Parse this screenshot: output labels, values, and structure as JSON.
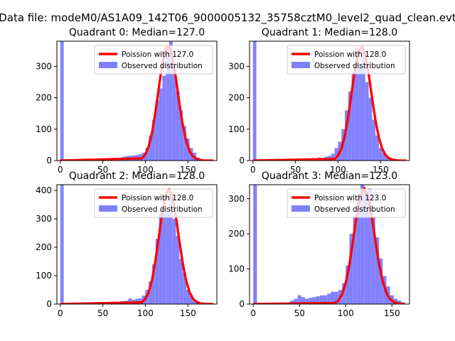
{
  "figure": {
    "suptitle": "Data file: modeM0/AS1A09_142T06_9000005132_35758cztM0_level2_quad_clean.evt"
  },
  "colors": {
    "fit_line": "#ff0000",
    "histogram": "#8080ff",
    "axis": "#000000",
    "background": "#ffffff"
  },
  "legend": {
    "observed_label": "Observed distribution"
  },
  "chart_data": [
    {
      "type": "bar",
      "title": "Quadrant 0: Median=127.0",
      "fit_label": "Poission with 127.0",
      "median": 127.0,
      "xlim": [
        -4,
        184
      ],
      "ylim": [
        0,
        380
      ],
      "xticks": [
        0,
        50,
        100,
        150
      ],
      "yticks": [
        0,
        100,
        200,
        300
      ],
      "bin_width": 4,
      "bins_x": [
        0,
        72,
        76,
        80,
        84,
        88,
        92,
        96,
        100,
        104,
        108,
        112,
        116,
        120,
        124,
        128,
        132,
        136,
        140,
        144,
        148,
        152,
        156,
        160,
        164
      ],
      "bins_y": [
        380,
        12,
        14,
        15,
        16,
        18,
        20,
        25,
        40,
        80,
        130,
        190,
        230,
        270,
        360,
        380,
        300,
        220,
        160,
        110,
        70,
        40,
        25,
        10,
        5
      ],
      "fit_x": [
        0,
        96,
        100,
        104,
        108,
        112,
        116,
        120,
        124,
        128,
        132,
        136,
        140,
        144,
        148,
        152,
        156,
        160,
        164,
        168,
        172,
        176,
        180
      ],
      "fit_y": [
        0,
        7,
        20,
        46,
        90,
        157,
        235,
        309,
        357,
        364,
        327,
        260,
        182,
        113,
        62,
        30,
        13,
        5,
        2,
        0,
        0,
        0,
        0
      ]
    },
    {
      "type": "bar",
      "title": "Quadrant 1: Median=128.0",
      "fit_label": "Poission with 128.0",
      "median": 128.0,
      "xlim": [
        -4,
        184
      ],
      "ylim": [
        0,
        380
      ],
      "xticks": [
        0,
        50,
        100,
        150
      ],
      "yticks": [
        0,
        100,
        200,
        300
      ],
      "bin_width": 4,
      "bins_x": [
        0,
        64,
        68,
        72,
        76,
        80,
        84,
        88,
        92,
        96,
        100,
        104,
        108,
        112,
        116,
        120,
        124,
        128,
        132,
        136,
        140,
        144,
        148,
        152,
        156,
        160
      ],
      "bins_y": [
        380,
        5,
        8,
        6,
        10,
        8,
        12,
        15,
        22,
        40,
        60,
        100,
        160,
        220,
        280,
        360,
        300,
        350,
        250,
        200,
        130,
        80,
        40,
        25,
        10,
        5
      ],
      "fit_x": [
        0,
        96,
        100,
        104,
        108,
        112,
        116,
        120,
        124,
        128,
        132,
        136,
        140,
        144,
        148,
        152,
        156,
        160,
        164,
        168,
        172,
        176,
        180
      ],
      "fit_y": [
        0,
        5,
        16,
        38,
        78,
        140,
        216,
        292,
        346,
        363,
        336,
        275,
        200,
        129,
        73,
        37,
        17,
        7,
        3,
        1,
        0,
        0,
        0
      ]
    },
    {
      "type": "bar",
      "title": "Quadrant 2: Median=128.0",
      "fit_label": "Poission with 128.0",
      "median": 128.0,
      "xlim": [
        -4,
        184
      ],
      "ylim": [
        0,
        420
      ],
      "xticks": [
        0,
        50,
        100,
        150
      ],
      "yticks": [
        0,
        100,
        200,
        300,
        400
      ],
      "bin_width": 4,
      "bins_x": [
        0,
        56,
        60,
        64,
        68,
        72,
        76,
        80,
        84,
        88,
        92,
        96,
        100,
        104,
        108,
        112,
        116,
        120,
        124,
        128,
        132,
        136,
        140,
        144,
        148,
        152,
        156,
        160
      ],
      "bins_y": [
        420,
        5,
        6,
        5,
        8,
        10,
        12,
        20,
        15,
        18,
        20,
        30,
        50,
        80,
        140,
        230,
        330,
        380,
        320,
        390,
        300,
        240,
        160,
        110,
        50,
        30,
        10,
        5
      ],
      "fit_x": [
        0,
        96,
        100,
        104,
        108,
        112,
        116,
        120,
        124,
        128,
        132,
        136,
        140,
        144,
        148,
        152,
        156,
        160,
        164,
        168,
        172,
        176,
        180
      ],
      "fit_y": [
        0,
        6,
        18,
        43,
        86,
        155,
        239,
        325,
        385,
        404,
        374,
        306,
        222,
        143,
        82,
        41,
        19,
        8,
        3,
        1,
        0,
        0,
        0
      ]
    },
    {
      "type": "bar",
      "title": "Quadrant 3: Median=123.0",
      "fit_label": "Poission with 123.0",
      "median": 123.0,
      "xlim": [
        -4,
        169
      ],
      "ylim": [
        0,
        340
      ],
      "xticks": [
        0,
        50,
        100,
        150
      ],
      "yticks": [
        0,
        100,
        200,
        300
      ],
      "bin_width": 4,
      "bins_x": [
        0,
        40,
        44,
        48,
        52,
        56,
        60,
        64,
        68,
        72,
        76,
        80,
        84,
        88,
        92,
        96,
        100,
        104,
        108,
        112,
        116,
        120,
        124,
        128,
        132,
        136,
        140,
        144,
        148,
        152,
        156,
        160
      ],
      "bins_y": [
        340,
        10,
        15,
        25,
        20,
        15,
        18,
        20,
        22,
        25,
        25,
        30,
        35,
        35,
        40,
        60,
        110,
        200,
        250,
        300,
        340,
        320,
        330,
        250,
        190,
        130,
        80,
        50,
        25,
        15,
        10,
        5
      ],
      "fit_x": [
        0,
        88,
        92,
        96,
        100,
        104,
        108,
        112,
        116,
        120,
        124,
        128,
        132,
        136,
        140,
        144,
        148,
        152,
        156,
        160,
        164
      ],
      "fit_y": [
        0,
        3,
        10,
        27,
        60,
        113,
        183,
        256,
        311,
        331,
        308,
        252,
        181,
        115,
        65,
        32,
        14,
        6,
        2,
        1,
        0
      ]
    }
  ]
}
